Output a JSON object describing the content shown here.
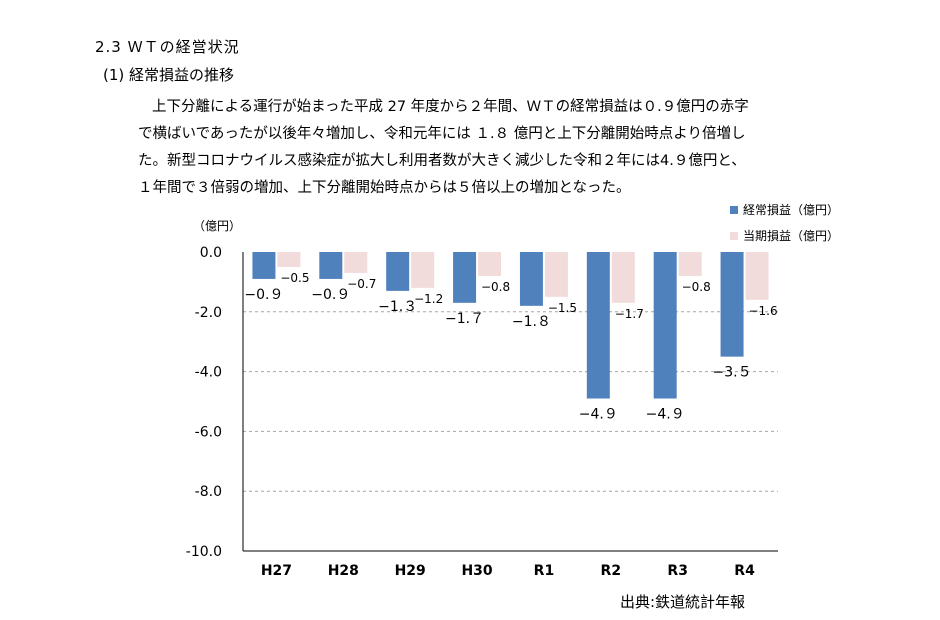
{
  "section": {
    "heading": "2.3 ＷＴの経営状況",
    "subheading": "(1)  経常損益の推移",
    "paragraph_lines": [
      "上下分離による運行が始まった平成 27 年度から２年間、ＷＴの経常損益は０.９億円の赤字",
      "で横ばいであったが以後年々増加し、令和元年には １.８ 億円と上下分離開始時点より倍増し",
      "た。新型コロナウイルス感染症が拡大し利用者数が大きく減少した令和２年には4.９億円と、",
      "１年間で３倍弱の増加、上下分離開始時点からは５倍以上の増加となった。"
    ]
  },
  "chart_data": {
    "type": "bar",
    "categories": [
      "H27",
      "H28",
      "H29",
      "H30",
      "R1",
      "R2",
      "R3",
      "R4"
    ],
    "series": [
      {
        "name": "経常損益（億円）",
        "color": "#4f81bd",
        "values": [
          -0.9,
          -0.9,
          -1.3,
          -1.7,
          -1.8,
          -4.9,
          -4.9,
          -3.5
        ],
        "labels": [
          "−0.９",
          "−0.９",
          "−1.３",
          "−1.７",
          "−1.８",
          "−4.９",
          "−4.９",
          "−3.５"
        ]
      },
      {
        "name": "当期損益（億円）",
        "color": "#f2dcdb",
        "values": [
          -0.5,
          -0.7,
          -1.2,
          -0.8,
          -1.5,
          -1.7,
          -0.8,
          -1.6
        ],
        "labels": [
          "−0.5",
          "−0.7",
          "−1.2",
          "−0.8",
          "−1.5",
          "−1.7",
          "−0.8",
          "−1.6"
        ]
      }
    ],
    "ylabel": "（億円）",
    "ylim": [
      -10,
      0
    ],
    "yticks": [
      "0.0",
      "-2.0",
      "-4.0",
      "-6.0",
      "-8.0",
      "-10.0"
    ],
    "grid": true,
    "legend": "top-right",
    "source": "出典:鉄道統計年報"
  }
}
